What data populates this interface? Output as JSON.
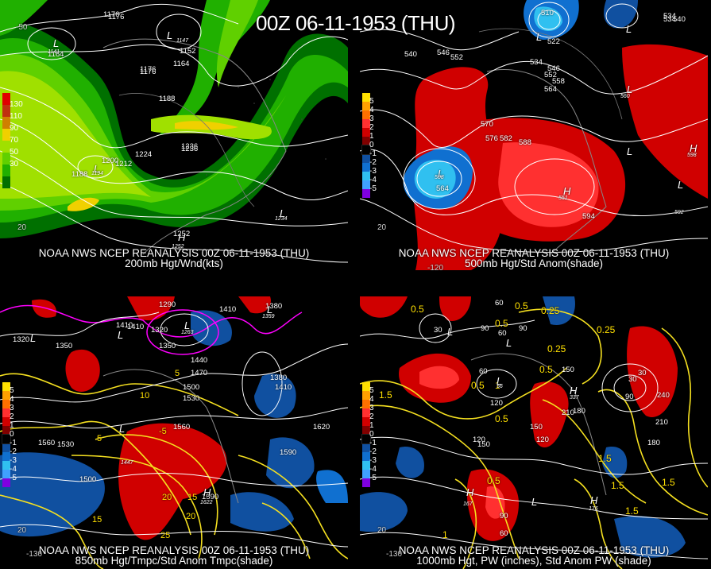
{
  "title": "00Z 06-11-1953 (THU)",
  "panels": [
    {
      "id": "p0",
      "caption_line1": "NOAA NWS NCEP REANALYSIS 00Z 06-11-1953 (THU)",
      "caption_line2": "200mb Hgt/Wnd(kts)",
      "legend": {
        "colors": [
          "#e00000",
          "#c03010",
          "#d08000",
          "#f0d000",
          "#a0e000",
          "#60d000",
          "#20b000",
          "#007000"
        ],
        "labels": [
          "130",
          "110",
          "90",
          "70",
          "50",
          "30"
        ]
      },
      "height_labels": [
        "1176",
        "1164",
        "1152",
        "1176",
        "1188",
        "1164",
        "1200",
        "1212",
        "1224",
        "1236",
        "1188",
        "1176",
        "1176",
        "1236",
        "1252"
      ],
      "center_labels": [
        "L",
        "L",
        "L",
        "L",
        "H"
      ],
      "center_values": [
        "1141",
        "1147",
        "1194",
        "1234",
        "1252"
      ],
      "edge_labels": [
        "20",
        "-50"
      ]
    },
    {
      "id": "p1",
      "caption_line1": "NOAA NWS NCEP REANALYSIS 00Z 06-11-1953 (THU)",
      "caption_line2": "500mb Hgt/Std Anom(shade)",
      "legend": {
        "colors": [
          "#ffe000",
          "#ffa000",
          "#ff7000",
          "#ff3030",
          "#d00000",
          "#800000",
          "#000000",
          "#1050a0",
          "#1070d0",
          "#30c0f0",
          "#40a0ff",
          "#8000e0"
        ],
        "labels": [
          "5",
          "4",
          "3",
          "2",
          "1",
          "0",
          "-1",
          "-2",
          "-3",
          "-4",
          "-5"
        ]
      },
      "height_labels": [
        "540",
        "546",
        "552",
        "510",
        "522",
        "534",
        "546",
        "552",
        "558",
        "564",
        "534",
        "540",
        "570",
        "576",
        "582",
        "588",
        "564",
        "594",
        "534"
      ],
      "center_labels": [
        "L",
        "L",
        "L",
        "L",
        "L",
        "H",
        "H",
        "L"
      ],
      "center_values": [
        "508",
        "560",
        "551",
        "598",
        "592",
        "580"
      ],
      "edge_labels": [
        "20",
        "-120"
      ]
    },
    {
      "id": "p2",
      "caption_line1": "NOAA NWS NCEP REANALYSIS 00Z 06-11-1953 (THU)",
      "caption_line2": "850mb Hgt/Tmpc/Std Anom Tmpc(shade)",
      "legend": {
        "colors": [
          "#ffe000",
          "#ffa000",
          "#ff7000",
          "#ff3030",
          "#d00000",
          "#800000",
          "#000000",
          "#1050a0",
          "#1070d0",
          "#30c0f0",
          "#40a0ff",
          "#8000e0"
        ],
        "labels": [
          "5",
          "4",
          "3",
          "2",
          "1",
          "0",
          "-1",
          "-2",
          "-3",
          "-4",
          "-5"
        ]
      },
      "height_labels": [
        "1380",
        "1290",
        "1410",
        "1320",
        "1350",
        "1410",
        "1410",
        "1320",
        "1350",
        "1440",
        "1470",
        "1500",
        "1530",
        "1380",
        "1410",
        "1560",
        "1530",
        "1560",
        "1590",
        "1620",
        "1500",
        "1590"
      ],
      "temp_labels": [
        "10",
        "5",
        "5",
        "-5",
        "15",
        "20",
        "25",
        "20",
        "15"
      ],
      "center_labels": [
        "L",
        "L",
        "L",
        "L",
        "L",
        "H"
      ],
      "center_values": [
        "1263",
        "1359",
        "1447",
        "1622"
      ],
      "edge_labels": [
        "20",
        "-130"
      ]
    },
    {
      "id": "p3",
      "caption_line1": "NOAA NWS NCEP REANALYSIS 00Z 06-11-1953 (THU)",
      "caption_line2": "1000mb Hgt, PW (inches), Std Anom PW (shade)",
      "legend": {
        "colors": [
          "#ffe000",
          "#ffa000",
          "#ff7000",
          "#ff3030",
          "#d00000",
          "#800000",
          "#000000",
          "#1050a0",
          "#1070d0",
          "#30c0f0",
          "#40a0ff",
          "#8000e0"
        ],
        "labels": [
          "5",
          "4",
          "3",
          "2",
          "1",
          "0",
          "-1",
          "-2",
          "-3",
          "-4",
          "-5"
        ]
      },
      "height_labels": [
        "60",
        "90",
        "30",
        "60",
        "90",
        "150",
        "60",
        "120",
        "150",
        "120",
        "210",
        "180",
        "150",
        "30",
        "90",
        "240",
        "120",
        "210",
        "180",
        "90",
        "60",
        "30"
      ],
      "pw_labels": [
        "0.5",
        "0.5",
        "0.25",
        "0.25",
        "0.25",
        "0.5",
        "1.5",
        "1",
        "0.5",
        "0.5",
        "1.5",
        "1.5",
        "1.5",
        "0.5",
        "1",
        "1.5",
        "0.5"
      ],
      "center_labels": [
        "L",
        "L",
        "L",
        "H",
        "H",
        "L",
        "H"
      ],
      "center_values": [
        "56",
        "337",
        "167",
        "176"
      ],
      "edge_labels": [
        "20",
        "-130"
      ]
    }
  ]
}
